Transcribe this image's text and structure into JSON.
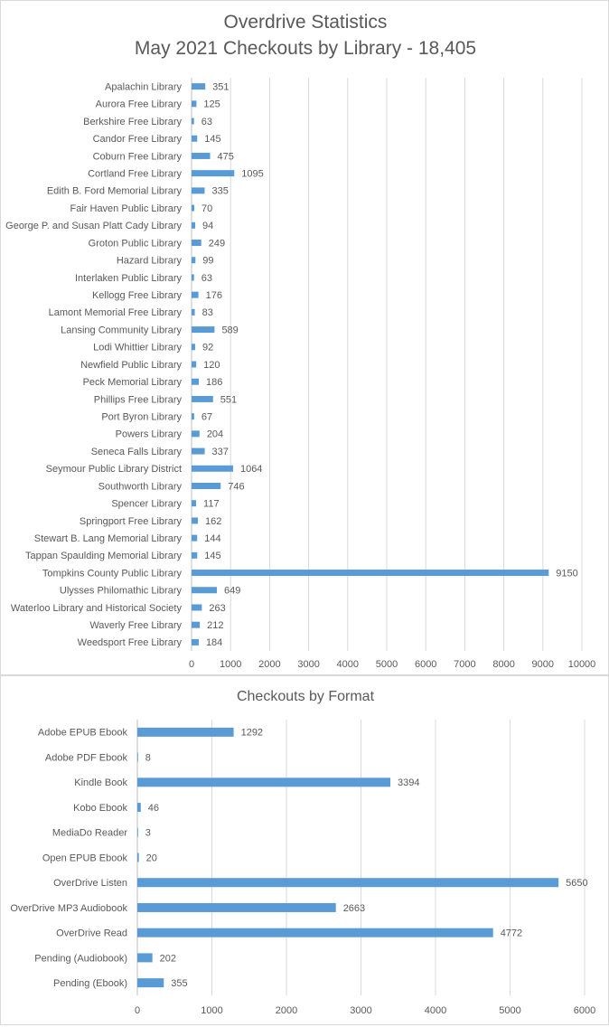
{
  "chart_data": [
    {
      "type": "bar",
      "orientation": "horizontal",
      "title": "Overdrive Statistics",
      "subtitle": "May 2021 Checkouts by Library - 18,405",
      "categories": [
        "Apalachin Library",
        "Aurora Free Library",
        "Berkshire Free Library",
        "Candor Free Library",
        "Coburn Free Library",
        "Cortland Free Library",
        "Edith B. Ford Memorial Library",
        "Fair Haven Public Library",
        "George P. and Susan Platt Cady Library",
        "Groton Public Library",
        "Hazard Library",
        "Interlaken Public Library",
        "Kellogg Free Library",
        "Lamont Memorial Free Library",
        "Lansing Community Library",
        "Lodi Whittier Library",
        "Newfield Public Library",
        "Peck Memorial Library",
        "Phillips Free Library",
        "Port Byron Library",
        "Powers Library",
        "Seneca Falls Library",
        "Seymour Public Library District",
        "Southworth Library",
        "Spencer Library",
        "Springport Free Library",
        "Stewart B. Lang Memorial Library",
        "Tappan Spaulding Memorial Library",
        "Tompkins County Public Library",
        "Ulysses Philomathic Library",
        "Waterloo Library and Historical Society",
        "Waverly Free Library",
        "Weedsport Free Library"
      ],
      "values": [
        351,
        125,
        63,
        145,
        475,
        1095,
        335,
        70,
        94,
        249,
        99,
        63,
        176,
        83,
        589,
        92,
        120,
        186,
        551,
        67,
        204,
        337,
        1064,
        746,
        117,
        162,
        144,
        145,
        9150,
        649,
        263,
        212,
        184
      ],
      "xlim": [
        0,
        10000
      ],
      "xticks": [
        0,
        1000,
        2000,
        3000,
        4000,
        5000,
        6000,
        7000,
        8000,
        9000,
        10000
      ],
      "grid": true,
      "bar_color": "#5b9bd5",
      "data_labels": true
    },
    {
      "type": "bar",
      "orientation": "horizontal",
      "title": "Checkouts by Format",
      "categories": [
        "Adobe EPUB Ebook",
        "Adobe PDF Ebook",
        "Kindle Book",
        "Kobo Ebook",
        "MediaDo Reader",
        "Open EPUB Ebook",
        "OverDrive Listen",
        "OverDrive MP3 Audiobook",
        "OverDrive Read",
        "Pending (Audiobook)",
        "Pending (Ebook)"
      ],
      "values": [
        1292,
        8,
        3394,
        46,
        3,
        20,
        5650,
        2663,
        4772,
        202,
        355
      ],
      "xlim": [
        0,
        6000
      ],
      "xticks": [
        0,
        1000,
        2000,
        3000,
        4000,
        5000,
        6000
      ],
      "grid": true,
      "bar_color": "#5b9bd5",
      "data_labels": true
    }
  ]
}
